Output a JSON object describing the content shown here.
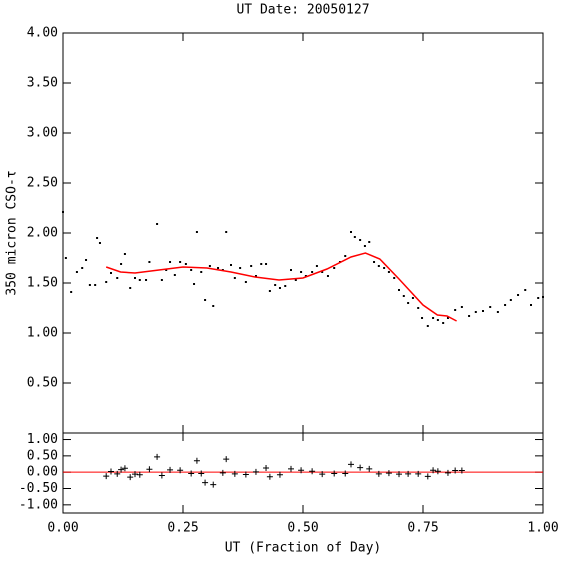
{
  "chart_data": [
    {
      "type": "scatter",
      "title": "UT Date: 20050127",
      "y_label": "350 micron CSO-τ",
      "xlim": [
        0,
        1
      ],
      "ylim": [
        0,
        4
      ],
      "xticks": [
        0,
        0.25,
        0.5,
        0.75,
        1
      ],
      "yticks": [
        {
          "value": 0.5,
          "label": "0.50"
        },
        {
          "value": 1,
          "label": "1.00"
        },
        {
          "value": 1.5,
          "label": "1.50"
        },
        {
          "value": 2,
          "label": "2.00"
        },
        {
          "value": 2.5,
          "label": "2.50"
        },
        {
          "value": 3,
          "label": "3.00"
        },
        {
          "value": 3.5,
          "label": "3.50"
        },
        {
          "value": 4,
          "label": "4.00"
        }
      ],
      "series": [
        {
          "marker": "dot",
          "color": "#000000",
          "x": [
            0,
            0.006,
            0.017,
            0.029,
            0.04,
            0.048,
            0.056,
            0.067,
            0.071,
            0.077,
            0.09,
            0.1,
            0.113,
            0.121,
            0.129,
            0.14,
            0.15,
            0.16,
            0.173,
            0.18,
            0.196,
            0.206,
            0.215,
            0.223,
            0.233,
            0.244,
            0.256,
            0.267,
            0.273,
            0.279,
            0.288,
            0.296,
            0.306,
            0.313,
            0.323,
            0.333,
            0.34,
            0.35,
            0.358,
            0.369,
            0.381,
            0.392,
            0.402,
            0.413,
            0.423,
            0.431,
            0.442,
            0.452,
            0.463,
            0.475,
            0.485,
            0.496,
            0.506,
            0.519,
            0.529,
            0.54,
            0.552,
            0.565,
            0.577,
            0.588,
            0.6,
            0.608,
            0.619,
            0.629,
            0.638,
            0.648,
            0.658,
            0.669,
            0.679,
            0.69,
            0.7,
            0.71,
            0.719,
            0.729,
            0.74,
            0.748,
            0.76,
            0.771,
            0.781,
            0.792,
            0.802,
            0.817,
            0.831,
            0.846,
            0.86,
            0.875,
            0.89,
            0.906,
            0.921,
            0.933,
            0.948,
            0.963,
            0.975,
            0.99,
            1.0
          ],
          "values": [
            2.21,
            1.75,
            1.41,
            1.61,
            1.65,
            1.73,
            1.48,
            1.48,
            1.95,
            1.9,
            1.51,
            1.6,
            1.55,
            1.69,
            1.79,
            1.45,
            1.55,
            1.53,
            1.53,
            1.71,
            2.09,
            1.53,
            1.63,
            1.71,
            1.58,
            1.71,
            1.69,
            1.63,
            1.49,
            2.01,
            1.61,
            1.33,
            1.67,
            1.27,
            1.65,
            1.63,
            2.01,
            1.68,
            1.55,
            1.65,
            1.51,
            1.67,
            1.57,
            1.69,
            1.69,
            1.42,
            1.48,
            1.45,
            1.47,
            1.63,
            1.53,
            1.61,
            1.57,
            1.61,
            1.67,
            1.61,
            1.57,
            1.65,
            1.71,
            1.77,
            2.01,
            1.96,
            1.93,
            1.87,
            1.91,
            1.71,
            1.67,
            1.65,
            1.61,
            1.55,
            1.43,
            1.37,
            1.3,
            1.35,
            1.25,
            1.15,
            1.07,
            1.15,
            1.13,
            1.1,
            1.15,
            1.23,
            1.26,
            1.17,
            1.21,
            1.22,
            1.26,
            1.21,
            1.28,
            1.33,
            1.38,
            1.43,
            1.28,
            1.35,
            1.36
          ]
        },
        {
          "marker": "line",
          "color": "#ff0000",
          "x": [
            0.09,
            0.12,
            0.15,
            0.2,
            0.25,
            0.3,
            0.35,
            0.4,
            0.45,
            0.5,
            0.55,
            0.6,
            0.63,
            0.66,
            0.7,
            0.75,
            0.78,
            0.8,
            0.82
          ],
          "values": [
            1.66,
            1.61,
            1.6,
            1.63,
            1.66,
            1.65,
            1.61,
            1.56,
            1.53,
            1.55,
            1.64,
            1.76,
            1.8,
            1.74,
            1.54,
            1.28,
            1.18,
            1.17,
            1.12
          ]
        }
      ]
    },
    {
      "type": "scatter",
      "x_label": "UT (Fraction of Day)",
      "xlim": [
        0,
        1
      ],
      "ylim": [
        -1.25,
        1.2
      ],
      "xticks": [
        {
          "value": 0,
          "label": "0.00"
        },
        {
          "value": 0.25,
          "label": "0.25"
        },
        {
          "value": 0.5,
          "label": "0.50"
        },
        {
          "value": 0.75,
          "label": "0.75"
        },
        {
          "value": 1,
          "label": "1.00"
        }
      ],
      "yticks": [
        {
          "value": -1,
          "label": "-1.00"
        },
        {
          "value": -0.5,
          "label": "-0.50"
        },
        {
          "value": 0,
          "label": "0.00"
        },
        {
          "value": 0.5,
          "label": "0.50"
        },
        {
          "value": 1,
          "label": "1.00"
        }
      ],
      "reference_line": 0,
      "reference_color": "#ff0000",
      "series": [
        {
          "marker": "plus",
          "color": "#000000",
          "x": [
            0.09,
            0.1,
            0.113,
            0.121,
            0.129,
            0.14,
            0.15,
            0.16,
            0.18,
            0.196,
            0.206,
            0.223,
            0.244,
            0.267,
            0.279,
            0.288,
            0.296,
            0.313,
            0.333,
            0.34,
            0.358,
            0.381,
            0.402,
            0.423,
            0.431,
            0.452,
            0.475,
            0.496,
            0.519,
            0.54,
            0.565,
            0.588,
            0.6,
            0.619,
            0.638,
            0.658,
            0.679,
            0.7,
            0.719,
            0.74,
            0.76,
            0.771,
            0.781,
            0.802,
            0.817,
            0.831
          ],
          "values": [
            -0.12,
            0.02,
            -0.05,
            0.08,
            0.12,
            -0.15,
            -0.06,
            -0.08,
            0.09,
            0.47,
            -0.1,
            0.07,
            0.06,
            -0.04,
            0.35,
            -0.04,
            -0.32,
            -0.38,
            -0.02,
            0.4,
            -0.05,
            -0.07,
            0.01,
            0.13,
            -0.14,
            -0.08,
            0.1,
            0.06,
            0.03,
            -0.06,
            -0.04,
            -0.04,
            0.24,
            0.14,
            0.1,
            -0.05,
            -0.03,
            -0.06,
            -0.05,
            -0.05,
            -0.13,
            0.06,
            0.03,
            -0.02,
            0.05,
            0.05
          ]
        }
      ]
    }
  ]
}
